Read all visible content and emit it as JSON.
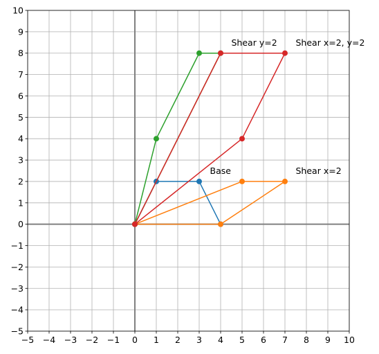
{
  "chart_data": {
    "type": "line",
    "title": "",
    "xlabel": "",
    "ylabel": "",
    "xlim": [
      -5,
      10
    ],
    "ylim": [
      -5,
      10
    ],
    "grid": true,
    "x_ticks": [
      -5,
      -4,
      -3,
      -2,
      -1,
      0,
      1,
      2,
      3,
      4,
      5,
      6,
      7,
      8,
      9,
      10
    ],
    "y_ticks": [
      -5,
      -4,
      -3,
      -2,
      -1,
      0,
      1,
      2,
      3,
      4,
      5,
      6,
      7,
      8,
      9,
      10
    ],
    "x_tick_labels": [
      "−5",
      "−4",
      "−3",
      "−2",
      "−1",
      "0",
      "1",
      "2",
      "3",
      "4",
      "5",
      "6",
      "7",
      "8",
      "9",
      "10"
    ],
    "y_tick_labels": [
      "−5",
      "−4",
      "−3",
      "−2",
      "−1",
      "0",
      "1",
      "2",
      "3",
      "4",
      "5",
      "6",
      "7",
      "8",
      "9",
      "10"
    ],
    "axis_lines": {
      "color": "#808080"
    },
    "grid_color": "#b0b0b0",
    "series": [
      {
        "color": "#1f77b4",
        "points": [
          [
            0,
            0
          ],
          [
            1,
            2
          ],
          [
            3,
            2
          ],
          [
            4,
            0
          ],
          [
            0,
            0
          ]
        ]
      },
      {
        "color": "#ff7f0e",
        "points": [
          [
            0,
            0
          ],
          [
            5,
            2
          ],
          [
            7,
            2
          ],
          [
            4,
            0
          ],
          [
            0,
            0
          ]
        ]
      },
      {
        "color": "#2ca02c",
        "points": [
          [
            0,
            0
          ],
          [
            1,
            4
          ],
          [
            3,
            8
          ],
          [
            4,
            8
          ],
          [
            0,
            0
          ]
        ]
      },
      {
        "color": "#d62728",
        "points": [
          [
            0,
            0
          ],
          [
            5,
            4
          ],
          [
            7,
            8
          ],
          [
            4,
            8
          ],
          [
            0,
            0
          ]
        ]
      }
    ],
    "annotations": [
      {
        "text": "Base",
        "x": 3.5,
        "y": 2.5
      },
      {
        "text": "Shear x=2",
        "x": 7.5,
        "y": 2.5
      },
      {
        "text": "Shear y=2",
        "x": 4.5,
        "y": 8.5
      },
      {
        "text": "Shear x=2, y=2",
        "x": 7.5,
        "y": 8.5
      }
    ]
  }
}
